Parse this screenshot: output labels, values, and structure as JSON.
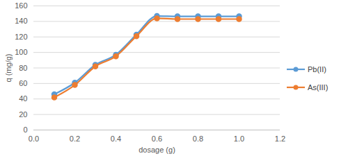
{
  "chart_data": {
    "type": "line",
    "x_label": "dosage (g)",
    "y_label": "q (mg/g)",
    "x": [
      0.1,
      0.2,
      0.3,
      0.4,
      0.5,
      0.6,
      0.7,
      0.8,
      0.9,
      1.0
    ],
    "series": [
      {
        "name": "Pb(II)",
        "color": "#5b9bd5",
        "marker": "circle",
        "line_style": "solid",
        "values": [
          46,
          61,
          84,
          97,
          123,
          147,
          146.5,
          146.5,
          146.5,
          146.5
        ]
      },
      {
        "name": "As(III)",
        "color": "#ed7d31",
        "marker": "circle",
        "line_style": "solid",
        "values": [
          42,
          58,
          82,
          95,
          121,
          144,
          143,
          143,
          143,
          143
        ]
      }
    ],
    "xlim": [
      0,
      1.2
    ],
    "xticks": [
      0,
      0.2,
      0.4,
      0.6,
      0.8,
      1,
      1.2
    ],
    "ylim": [
      0,
      160
    ],
    "yticks": [
      0,
      20,
      40,
      60,
      80,
      100,
      120,
      140,
      160
    ],
    "grid": true,
    "legend": "right"
  }
}
